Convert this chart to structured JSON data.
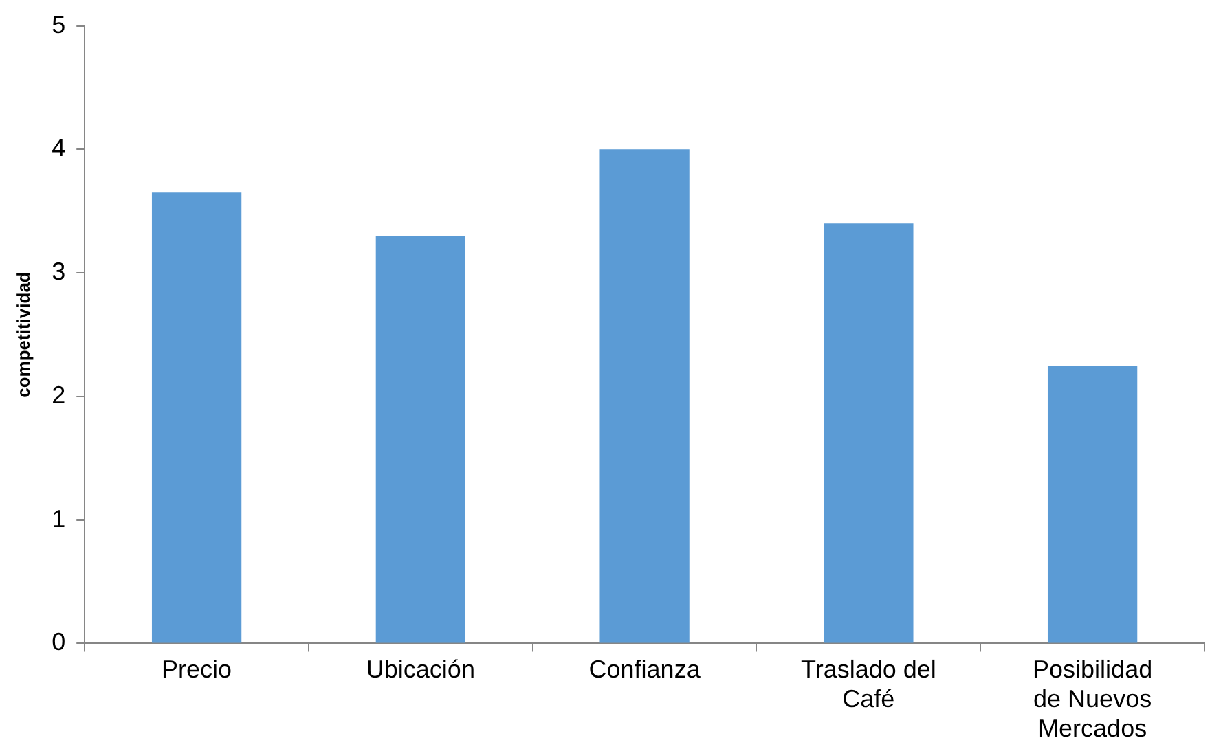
{
  "chart_data": {
    "type": "bar",
    "ylabel": "competitividad",
    "categories": [
      "Precio",
      "Ubicación",
      "Confianza",
      "Traslado del Café",
      "Posibilidad de Nuevos Mercados"
    ],
    "values": [
      3.65,
      3.3,
      4.0,
      3.4,
      2.25
    ],
    "color": "#5b9bd5",
    "ylim": [
      0,
      5
    ],
    "yticks": [
      0,
      1,
      2,
      3,
      4,
      5
    ],
    "grid": false,
    "legend": false
  }
}
